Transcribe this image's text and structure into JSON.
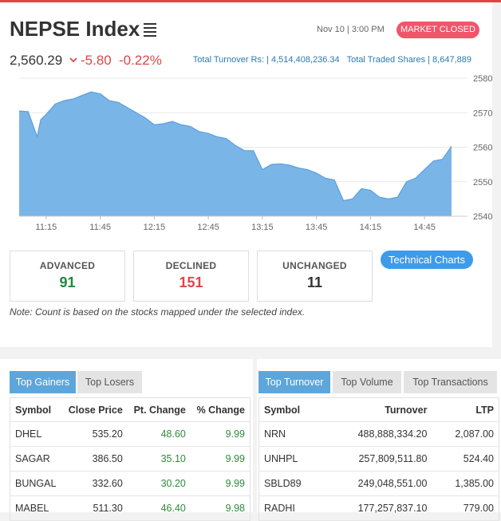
{
  "header": {
    "title": "NEPSE Index",
    "datetime": "Nov 10 | 3:00 PM",
    "market_status": "MARKET CLOSED",
    "index_value": "2,560.29",
    "point_change": "-5.80",
    "percent_change": "-0.22%",
    "turnover_text": "Total Turnover Rs: | 4,514,408,236.34",
    "traded_shares_text": "Total Traded Shares | 8,647,889"
  },
  "chart_data": {
    "type": "area",
    "x_ticks": [
      "11:15",
      "11:45",
      "12:15",
      "12:45",
      "13:15",
      "13:45",
      "14:15",
      "14:45"
    ],
    "y_ticks": [
      "2580",
      "2570",
      "2560",
      "2550",
      "2540"
    ],
    "ylim": [
      2540,
      2580
    ],
    "color": "#7ab5e8",
    "series": [
      {
        "x": [
          "11:00",
          "11:05",
          "11:10",
          "11:12",
          "11:15",
          "11:20",
          "11:25",
          "11:30",
          "11:35",
          "11:40",
          "11:45",
          "11:50",
          "11:55",
          "12:00",
          "12:05",
          "12:10",
          "12:15",
          "12:20",
          "12:25",
          "12:30",
          "12:35",
          "12:40",
          "12:45",
          "12:50",
          "12:55",
          "13:00",
          "13:05",
          "13:10",
          "13:15",
          "13:20",
          "13:25",
          "13:30",
          "13:35",
          "13:40",
          "13:45",
          "13:50",
          "13:55",
          "14:00",
          "14:05",
          "14:10",
          "14:15",
          "14:20",
          "14:25",
          "14:30",
          "14:35",
          "14:40",
          "14:45",
          "14:50",
          "14:55",
          "15:00"
        ],
        "values": [
          2570.5,
          2570.3,
          2563,
          2568,
          2569.5,
          2572.5,
          2573.5,
          2574,
          2575,
          2576,
          2575.5,
          2573.5,
          2573,
          2571.5,
          2570,
          2568.5,
          2566.5,
          2566.8,
          2567.5,
          2566.5,
          2566,
          2564.5,
          2564,
          2563,
          2562.5,
          2560.5,
          2559,
          2559,
          2553.5,
          2555,
          2555.2,
          2554.8,
          2554,
          2553.5,
          2552.5,
          2551,
          2550.5,
          2544.5,
          2545,
          2548,
          2547.5,
          2545.5,
          2545,
          2545.5,
          2550,
          2551,
          2553.5,
          2556,
          2556.5,
          2560.29
        ]
      }
    ]
  },
  "stats": [
    {
      "label": "ADVANCED",
      "value": "91",
      "color": "#1f8a3a"
    },
    {
      "label": "DECLINED",
      "value": "151",
      "color": "#e04545"
    },
    {
      "label": "UNCHANGED",
      "value": "11",
      "color": "#333333"
    }
  ],
  "technical_charts_label": "Technical Charts",
  "note": "Note: Count is based on the stocks mapped under the selected index.",
  "gainers": {
    "tabs": [
      "Top Gainers",
      "Top Losers"
    ],
    "headers": [
      "Symbol",
      "Close Price",
      "Pt. Change",
      "% Change"
    ],
    "rows": [
      [
        "DHEL",
        "535.20",
        "48.60",
        "9.99"
      ],
      [
        "SAGAR",
        "386.50",
        "35.10",
        "9.99"
      ],
      [
        "BUNGAL",
        "332.60",
        "30.20",
        "9.99"
      ],
      [
        "MABEL",
        "511.30",
        "46.40",
        "9.98"
      ]
    ]
  },
  "turnover": {
    "tabs": [
      "Top Turnover",
      "Top Volume",
      "Top Transactions"
    ],
    "headers": [
      "Symbol",
      "Turnover",
      "LTP"
    ],
    "rows": [
      [
        "NRN",
        "488,888,334.20",
        "2,087.00"
      ],
      [
        "UNHPL",
        "257,809,511.80",
        "524.40"
      ],
      [
        "SBLD89",
        "249,048,551.00",
        "1,385.00"
      ],
      [
        "RADHI",
        "177,257,837.10",
        "779.00"
      ]
    ]
  }
}
